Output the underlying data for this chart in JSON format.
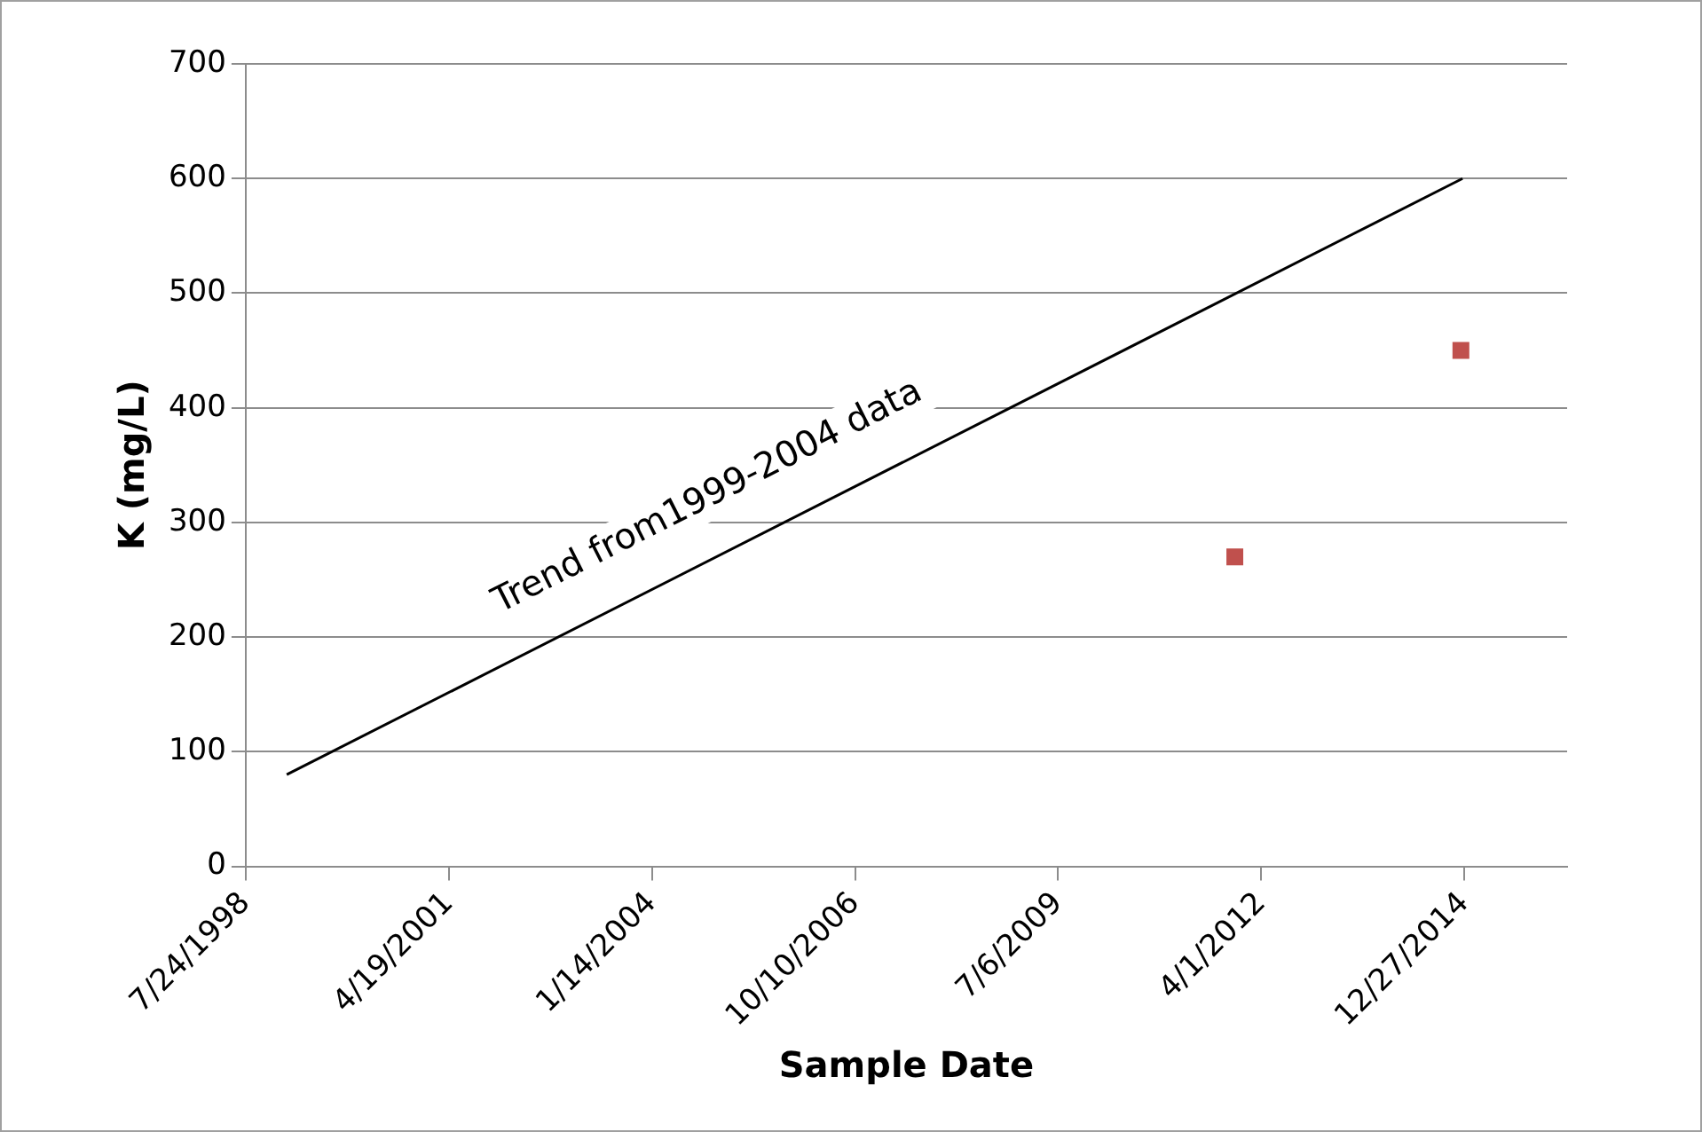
{
  "chart_data": {
    "type": "scatter",
    "xlabel": "Sample Date",
    "ylabel": "K (mg/L)",
    "xlim": [
      "1998-07-24",
      "2016-05-16"
    ],
    "xticks": [
      {
        "value": "1998-07-24",
        "label": "7/24/1998"
      },
      {
        "value": "2001-04-19",
        "label": "4/19/2001"
      },
      {
        "value": "2004-01-14",
        "label": "1/14/2004"
      },
      {
        "value": "2006-10-10",
        "label": "10/10/2006"
      },
      {
        "value": "2009-07-06",
        "label": "7/6/2009"
      },
      {
        "value": "2012-04-01",
        "label": "4/1/2012"
      },
      {
        "value": "2014-12-27",
        "label": "12/27/2014"
      }
    ],
    "ylim": [
      0,
      700
    ],
    "yticks": [
      0,
      100,
      200,
      300,
      400,
      500,
      600,
      700
    ],
    "grid": "y",
    "legend": false,
    "series": [
      {
        "type": "line",
        "color": "#000000",
        "x": [
          "1999-02-11",
          "2014-12-18"
        ],
        "values": [
          80,
          600
        ],
        "marker": "none",
        "line_style": "solid"
      },
      {
        "color": "#c0504d",
        "x": [
          "2011-11-23",
          "2014-12-10"
        ],
        "values": [
          270,
          450
        ],
        "marker": "square"
      }
    ],
    "annotations": [
      "Trend from1999-2004 data"
    ]
  }
}
